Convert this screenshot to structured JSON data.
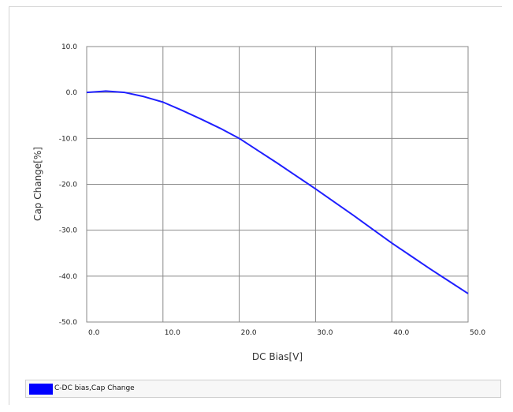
{
  "colors": {
    "series": "#1f1fff",
    "grid": "#8a8a8a",
    "legend_swatch": "#0000ff"
  },
  "chart_data": {
    "type": "line",
    "title": "",
    "xlabel": "DC Bias[V]",
    "ylabel": "Cap Change[%]",
    "xlim": [
      0,
      50
    ],
    "ylim": [
      -50,
      10
    ],
    "xticks": [
      0,
      10,
      20,
      30,
      40,
      50
    ],
    "yticks": [
      10,
      0,
      -10,
      -20,
      -30,
      -40,
      -50
    ],
    "xtick_labels": [
      "0.0",
      "10.0",
      "20.0",
      "30.0",
      "40.0",
      "50.0"
    ],
    "ytick_labels": [
      "10.0",
      "0.0",
      "-10.0",
      "-20.0",
      "-30.0",
      "-40.0",
      "-50.0"
    ],
    "grid": true,
    "legend": "bottom",
    "series": [
      {
        "name": "C-DC bias,Cap Change",
        "x": [
          0,
          2.5,
          5,
          7.5,
          10,
          12.5,
          15,
          17.5,
          20,
          22.5,
          25,
          27.5,
          30,
          32.5,
          35,
          37.5,
          40,
          42.5,
          45,
          47.5,
          50
        ],
        "y": [
          0,
          0.3,
          0,
          -0.9,
          -2.1,
          -3.9,
          -5.8,
          -7.8,
          -10.0,
          -12.7,
          -15.4,
          -18.2,
          -21.0,
          -23.9,
          -26.8,
          -29.8,
          -32.8,
          -35.6,
          -38.4,
          -41.1,
          -43.8
        ]
      }
    ]
  }
}
